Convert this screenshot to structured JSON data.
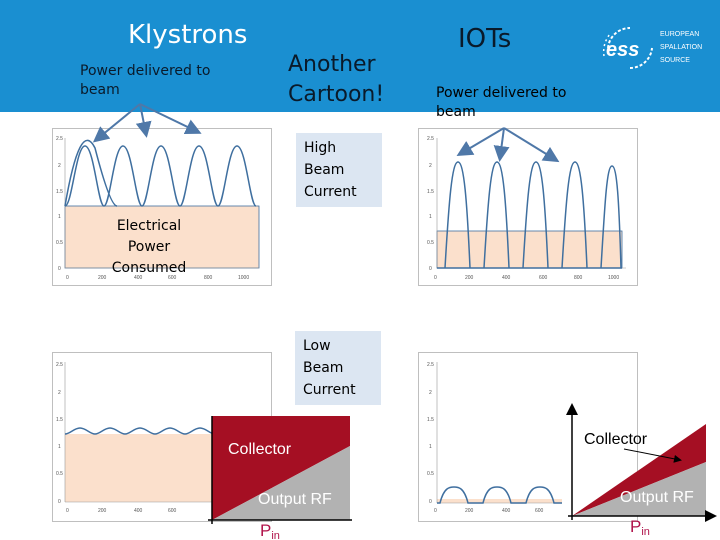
{
  "colors": {
    "header_bg": "#1a8fd1",
    "beam_fill": "#fbe0cc",
    "wave": "#3f6f9f",
    "collector": "#a50f23",
    "output_rf": "#b2b2b2",
    "pin": "#b0134a",
    "label_box": "#dce6f2"
  },
  "header": {
    "klystrons_title": "Klystrons",
    "klystrons_sub_line1": "Power delivered to",
    "klystrons_sub_line2": "beam",
    "cartoon_line1": "Another",
    "cartoon_line2": "Cartoon!",
    "iots_title": "IOTs",
    "iots_sub_line1": "Power delivered to",
    "iots_sub_line2": "beam",
    "logo_text": "ess",
    "logo_line1": "EUROPEAN",
    "logo_line2": "SPALLATION",
    "logo_line3": "SOURCE"
  },
  "labels": {
    "high_line1": "High",
    "high_line2": "Beam",
    "high_line3": "Current",
    "low_line1": "Low",
    "low_line2": "Beam",
    "low_line3": "Current",
    "elec_line1": "Electrical Power",
    "elec_line2": "Consumed"
  },
  "charts": {
    "high_y_ticks": [
      "2.5",
      "2",
      "1.5",
      "1",
      "0.5",
      "0"
    ],
    "high_x_ticks": [
      "0",
      "200",
      "400",
      "600",
      "800",
      "1000"
    ],
    "low_y_ticks": [
      "2.5",
      "2",
      "1.5",
      "1",
      "0.5",
      "0"
    ],
    "low_x_ticks": [
      "0",
      "200",
      "400",
      "600"
    ],
    "iot_low_x_ticks": [
      "0",
      "200",
      "400",
      "600"
    ]
  },
  "klystron_diagram": {
    "collector": "Collector",
    "output_rf": "Output RF",
    "pin_main": "P",
    "pin_sub": "in"
  },
  "iot_diagram": {
    "collector": "Collector",
    "output_rf": "Output RF",
    "pin_main": "P",
    "pin_sub": "in"
  }
}
